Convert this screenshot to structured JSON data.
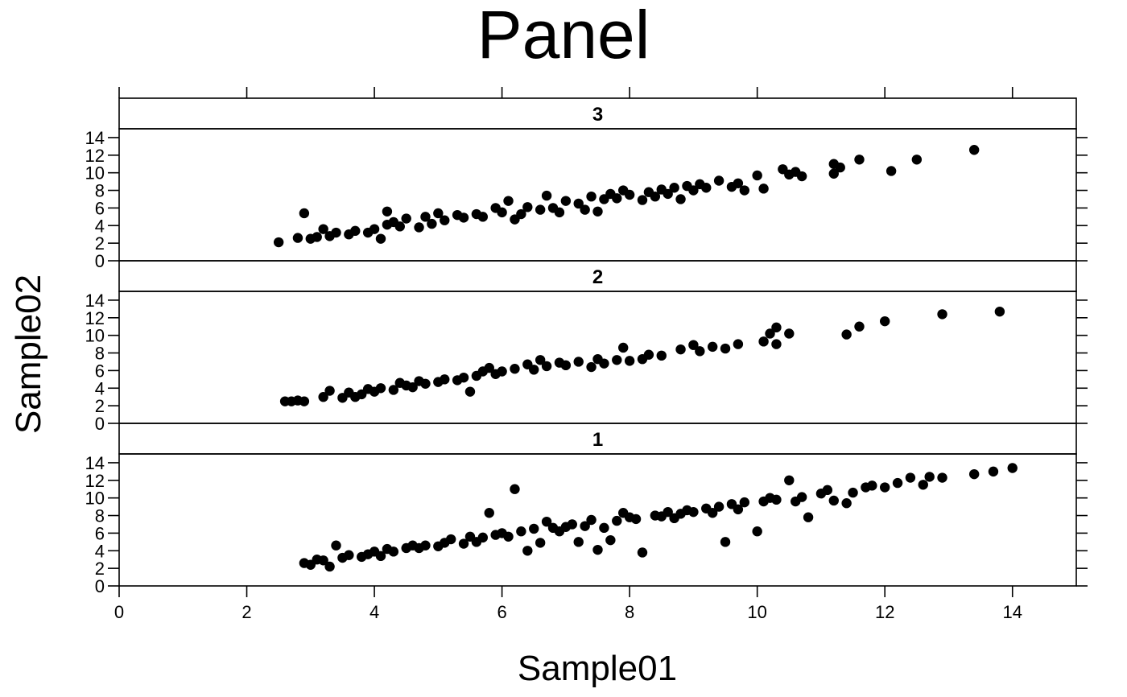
{
  "chart_data": {
    "type": "scatter",
    "title": "Panel",
    "xlabel": "Sample01",
    "ylabel": "Sample02",
    "xlim": [
      0,
      15
    ],
    "ylim": [
      0,
      15
    ],
    "x_ticks": [
      0,
      2,
      4,
      6,
      8,
      10,
      12,
      14
    ],
    "y_ticks": [
      0,
      2,
      4,
      6,
      8,
      10,
      12,
      14
    ],
    "grid": false,
    "point_color": "#000000",
    "panels": [
      {
        "label": "3",
        "points": [
          [
            2.5,
            2.1
          ],
          [
            2.8,
            2.6
          ],
          [
            2.9,
            5.4
          ],
          [
            3.0,
            2.5
          ],
          [
            3.1,
            2.7
          ],
          [
            3.2,
            3.6
          ],
          [
            3.3,
            2.8
          ],
          [
            3.4,
            3.2
          ],
          [
            3.6,
            3.0
          ],
          [
            3.7,
            3.4
          ],
          [
            3.9,
            3.2
          ],
          [
            4.0,
            3.6
          ],
          [
            4.1,
            2.5
          ],
          [
            4.2,
            4.1
          ],
          [
            4.2,
            5.6
          ],
          [
            4.3,
            4.4
          ],
          [
            4.4,
            3.9
          ],
          [
            4.5,
            4.8
          ],
          [
            4.7,
            3.8
          ],
          [
            4.8,
            5.0
          ],
          [
            4.9,
            4.2
          ],
          [
            5.0,
            5.4
          ],
          [
            5.1,
            4.6
          ],
          [
            5.3,
            5.2
          ],
          [
            5.4,
            4.9
          ],
          [
            5.6,
            5.3
          ],
          [
            5.7,
            5.0
          ],
          [
            5.9,
            6.0
          ],
          [
            6.0,
            5.5
          ],
          [
            6.1,
            6.8
          ],
          [
            6.2,
            4.7
          ],
          [
            6.3,
            5.3
          ],
          [
            6.4,
            6.1
          ],
          [
            6.6,
            5.8
          ],
          [
            6.7,
            7.4
          ],
          [
            6.8,
            6.0
          ],
          [
            6.9,
            5.5
          ],
          [
            7.0,
            6.8
          ],
          [
            7.2,
            6.5
          ],
          [
            7.3,
            5.8
          ],
          [
            7.4,
            7.3
          ],
          [
            7.5,
            5.6
          ],
          [
            7.6,
            7.0
          ],
          [
            7.7,
            7.6
          ],
          [
            7.8,
            7.1
          ],
          [
            7.9,
            8.0
          ],
          [
            8.0,
            7.5
          ],
          [
            8.2,
            6.9
          ],
          [
            8.3,
            7.8
          ],
          [
            8.4,
            7.3
          ],
          [
            8.5,
            8.1
          ],
          [
            8.6,
            7.6
          ],
          [
            8.7,
            8.3
          ],
          [
            8.8,
            7.0
          ],
          [
            8.9,
            8.5
          ],
          [
            9.0,
            8.0
          ],
          [
            9.1,
            8.7
          ],
          [
            9.2,
            8.3
          ],
          [
            9.4,
            9.1
          ],
          [
            9.6,
            8.4
          ],
          [
            9.7,
            8.8
          ],
          [
            9.8,
            8.0
          ],
          [
            10.0,
            9.7
          ],
          [
            10.1,
            8.2
          ],
          [
            10.4,
            10.4
          ],
          [
            10.5,
            9.8
          ],
          [
            10.6,
            10.1
          ],
          [
            10.7,
            9.6
          ],
          [
            11.2,
            11.0
          ],
          [
            11.2,
            9.9
          ],
          [
            11.3,
            10.6
          ],
          [
            11.6,
            11.5
          ],
          [
            12.1,
            10.2
          ],
          [
            12.5,
            11.5
          ],
          [
            13.4,
            12.6
          ]
        ]
      },
      {
        "label": "2",
        "points": [
          [
            2.6,
            2.5
          ],
          [
            2.7,
            2.5
          ],
          [
            2.8,
            2.6
          ],
          [
            2.9,
            2.5
          ],
          [
            3.2,
            3.0
          ],
          [
            3.3,
            3.7
          ],
          [
            3.5,
            2.9
          ],
          [
            3.6,
            3.5
          ],
          [
            3.7,
            3.0
          ],
          [
            3.8,
            3.3
          ],
          [
            3.9,
            3.9
          ],
          [
            4.0,
            3.6
          ],
          [
            4.1,
            4.0
          ],
          [
            4.3,
            3.8
          ],
          [
            4.4,
            4.6
          ],
          [
            4.5,
            4.3
          ],
          [
            4.6,
            4.1
          ],
          [
            4.7,
            4.8
          ],
          [
            4.8,
            4.5
          ],
          [
            5.0,
            4.7
          ],
          [
            5.1,
            5.0
          ],
          [
            5.3,
            4.9
          ],
          [
            5.4,
            5.2
          ],
          [
            5.5,
            3.6
          ],
          [
            5.6,
            5.4
          ],
          [
            5.7,
            5.9
          ],
          [
            5.8,
            6.3
          ],
          [
            5.9,
            5.6
          ],
          [
            6.0,
            5.9
          ],
          [
            6.2,
            6.2
          ],
          [
            6.4,
            6.7
          ],
          [
            6.5,
            6.1
          ],
          [
            6.6,
            7.2
          ],
          [
            6.7,
            6.5
          ],
          [
            6.9,
            6.9
          ],
          [
            7.0,
            6.6
          ],
          [
            7.2,
            7.0
          ],
          [
            7.4,
            6.4
          ],
          [
            7.5,
            7.3
          ],
          [
            7.6,
            6.8
          ],
          [
            7.8,
            7.2
          ],
          [
            7.9,
            8.6
          ],
          [
            8.0,
            7.1
          ],
          [
            8.2,
            7.3
          ],
          [
            8.3,
            7.8
          ],
          [
            8.5,
            7.7
          ],
          [
            8.8,
            8.4
          ],
          [
            9.0,
            8.9
          ],
          [
            9.1,
            8.2
          ],
          [
            9.3,
            8.7
          ],
          [
            9.5,
            8.5
          ],
          [
            9.7,
            9.0
          ],
          [
            10.1,
            9.3
          ],
          [
            10.2,
            10.2
          ],
          [
            10.3,
            10.9
          ],
          [
            10.3,
            9.0
          ],
          [
            10.5,
            10.2
          ],
          [
            11.4,
            10.1
          ],
          [
            11.6,
            11.0
          ],
          [
            12.0,
            11.6
          ],
          [
            12.9,
            12.4
          ],
          [
            13.8,
            12.7
          ]
        ]
      },
      {
        "label": "1",
        "points": [
          [
            2.9,
            2.6
          ],
          [
            3.0,
            2.4
          ],
          [
            3.1,
            3.0
          ],
          [
            3.2,
            2.9
          ],
          [
            3.3,
            2.2
          ],
          [
            3.4,
            4.6
          ],
          [
            3.5,
            3.2
          ],
          [
            3.6,
            3.5
          ],
          [
            3.8,
            3.3
          ],
          [
            3.9,
            3.6
          ],
          [
            4.0,
            3.9
          ],
          [
            4.1,
            3.4
          ],
          [
            4.2,
            4.2
          ],
          [
            4.3,
            3.9
          ],
          [
            4.5,
            4.3
          ],
          [
            4.6,
            4.6
          ],
          [
            4.7,
            4.3
          ],
          [
            4.8,
            4.6
          ],
          [
            5.0,
            4.5
          ],
          [
            5.1,
            4.9
          ],
          [
            5.2,
            5.3
          ],
          [
            5.4,
            4.8
          ],
          [
            5.5,
            5.6
          ],
          [
            5.6,
            5.0
          ],
          [
            5.7,
            5.5
          ],
          [
            5.8,
            8.3
          ],
          [
            5.9,
            5.8
          ],
          [
            6.0,
            6.0
          ],
          [
            6.1,
            5.6
          ],
          [
            6.2,
            11.0
          ],
          [
            6.3,
            6.2
          ],
          [
            6.4,
            4.0
          ],
          [
            6.5,
            6.5
          ],
          [
            6.6,
            4.9
          ],
          [
            6.7,
            7.3
          ],
          [
            6.8,
            6.6
          ],
          [
            6.9,
            6.2
          ],
          [
            7.0,
            6.7
          ],
          [
            7.1,
            7.0
          ],
          [
            7.2,
            5.0
          ],
          [
            7.3,
            6.8
          ],
          [
            7.4,
            7.5
          ],
          [
            7.5,
            4.1
          ],
          [
            7.6,
            6.6
          ],
          [
            7.7,
            5.2
          ],
          [
            7.8,
            7.4
          ],
          [
            7.9,
            8.3
          ],
          [
            8.0,
            7.8
          ],
          [
            8.1,
            7.6
          ],
          [
            8.2,
            3.8
          ],
          [
            8.4,
            8.0
          ],
          [
            8.5,
            7.9
          ],
          [
            8.6,
            8.4
          ],
          [
            8.7,
            7.7
          ],
          [
            8.8,
            8.2
          ],
          [
            8.9,
            8.6
          ],
          [
            9.0,
            8.4
          ],
          [
            9.2,
            8.8
          ],
          [
            9.3,
            8.3
          ],
          [
            9.4,
            9.0
          ],
          [
            9.5,
            5.0
          ],
          [
            9.6,
            9.3
          ],
          [
            9.7,
            8.7
          ],
          [
            9.8,
            9.5
          ],
          [
            10.0,
            6.2
          ],
          [
            10.1,
            9.6
          ],
          [
            10.2,
            10.0
          ],
          [
            10.3,
            9.8
          ],
          [
            10.5,
            12.0
          ],
          [
            10.6,
            9.6
          ],
          [
            10.7,
            10.1
          ],
          [
            10.8,
            7.8
          ],
          [
            11.0,
            10.5
          ],
          [
            11.1,
            10.9
          ],
          [
            11.2,
            9.7
          ],
          [
            11.4,
            9.4
          ],
          [
            11.5,
            10.6
          ],
          [
            11.7,
            11.2
          ],
          [
            11.8,
            11.4
          ],
          [
            12.0,
            11.2
          ],
          [
            12.2,
            11.7
          ],
          [
            12.4,
            12.3
          ],
          [
            12.6,
            11.5
          ],
          [
            12.7,
            12.4
          ],
          [
            12.9,
            12.3
          ],
          [
            13.4,
            12.7
          ],
          [
            13.7,
            13.0
          ],
          [
            14.0,
            13.4
          ]
        ]
      }
    ]
  }
}
